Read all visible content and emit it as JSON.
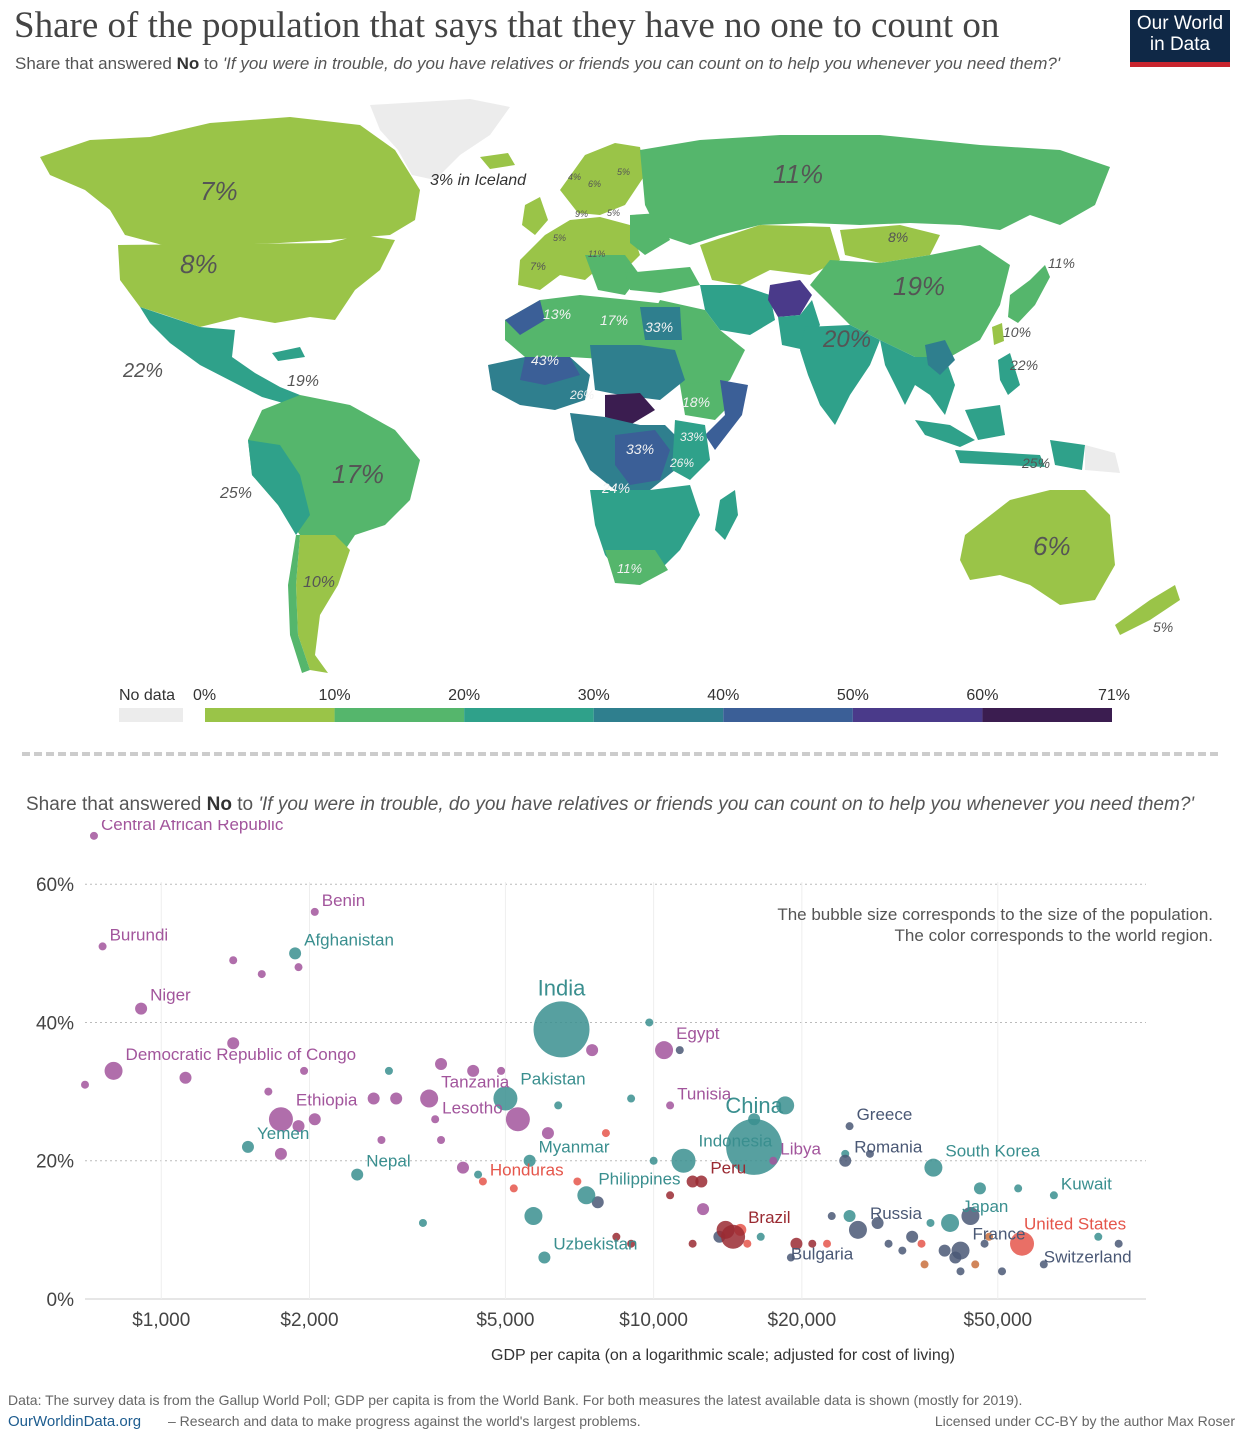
{
  "title": "Share of the population that says that they have no one to count on",
  "subtitle": {
    "prefix": "Share that answered ",
    "bold": "No",
    "middle": " to ",
    "question": "'If you were in trouble, do you have relatives or friends you can count on to help you whenever you need them?'"
  },
  "logo": {
    "line1": "Our World",
    "line2": "in Data"
  },
  "colors": {
    "bin_0_10": "#9ac448",
    "bin_10_20": "#55b66c",
    "bin_20_30": "#2fa18a",
    "bin_30_40": "#2f7f8e",
    "bin_40_50": "#3b5f97",
    "bin_50_60": "#4a3a8a",
    "bin_60_71": "#3b1d50",
    "no_data": "#ececec",
    "region_africa": "#a2559c",
    "region_asia": "#3a8f8f",
    "region_europe": "#4a5875",
    "region_north_america": "#e5564b",
    "region_south_america": "#9a2a32",
    "region_oceania": "#c9703d"
  },
  "map_labels": [
    {
      "text": "7%"
    },
    {
      "text": "8%"
    },
    {
      "text": "3% in Iceland"
    },
    {
      "text": "11%"
    },
    {
      "text": "8%"
    },
    {
      "text": "19%"
    },
    {
      "text": "11%"
    },
    {
      "text": "10%"
    },
    {
      "text": "20%"
    },
    {
      "text": "22%"
    },
    {
      "text": "22%"
    },
    {
      "text": "19%"
    },
    {
      "text": "17%"
    },
    {
      "text": "25%"
    },
    {
      "text": "10%"
    },
    {
      "text": "13%"
    },
    {
      "text": "17%"
    },
    {
      "text": "33%"
    },
    {
      "text": "43%"
    },
    {
      "text": "26%"
    },
    {
      "text": "18%"
    },
    {
      "text": "33%"
    },
    {
      "text": "33%"
    },
    {
      "text": "26%"
    },
    {
      "text": "24%"
    },
    {
      "text": "11%"
    },
    {
      "text": "25%"
    },
    {
      "text": "6%"
    },
    {
      "text": "5%"
    },
    {
      "text": "7%"
    },
    {
      "text": "5%"
    },
    {
      "text": "4%"
    },
    {
      "text": "6%"
    },
    {
      "text": "5%"
    },
    {
      "text": "9%"
    },
    {
      "text": "5%"
    },
    {
      "text": "11%"
    }
  ],
  "legend": {
    "no_data_label": "No data",
    "ticks": [
      "0%",
      "10%",
      "20%",
      "30%",
      "40%",
      "50%",
      "60%",
      "71%"
    ]
  },
  "scatter_subtitle": {
    "prefix": "Share that answered ",
    "bold": "No",
    "middle": " to ",
    "question": "'If you were in trouble, do you have relatives or friends you can count on to help you whenever you need them?'"
  },
  "bubble_note": {
    "line1": "The bubble size corresponds to the size of the population.",
    "line2": "The color corresponds to the world region."
  },
  "chart_data": {
    "type": "scatter",
    "title": "",
    "xlabel": "GDP per capita (on a logarithmic scale; adjusted for cost of living)",
    "ylabel": "",
    "x_scale": "log",
    "xlim": [
      700,
      100000
    ],
    "ylim": [
      0,
      69
    ],
    "x_ticks": [
      {
        "value": 1000,
        "label": "$1,000"
      },
      {
        "value": 2000,
        "label": "$2,000"
      },
      {
        "value": 5000,
        "label": "$5,000"
      },
      {
        "value": 10000,
        "label": "$10,000"
      },
      {
        "value": 20000,
        "label": "$20,000"
      },
      {
        "value": 50000,
        "label": "$50,000"
      }
    ],
    "y_ticks": [
      {
        "value": 0,
        "label": "0%"
      },
      {
        "value": 20,
        "label": "20%"
      },
      {
        "value": 40,
        "label": "40%"
      },
      {
        "value": 60,
        "label": "60%"
      }
    ],
    "grid": "horizontal dotted",
    "labeled_points": [
      {
        "name": "Central African Republic",
        "x": 730,
        "y": 67,
        "region": "africa",
        "pop": "s"
      },
      {
        "name": "Benin",
        "x": 2050,
        "y": 56,
        "region": "africa",
        "pop": "s"
      },
      {
        "name": "Burundi",
        "x": 760,
        "y": 51,
        "region": "africa",
        "pop": "s"
      },
      {
        "name": "Afghanistan",
        "x": 1870,
        "y": 50,
        "region": "asia",
        "pop": "m"
      },
      {
        "name": "Niger",
        "x": 910,
        "y": 42,
        "region": "africa",
        "pop": "m"
      },
      {
        "name": "India",
        "x": 6500,
        "y": 39,
        "region": "asia",
        "pop": "xxl"
      },
      {
        "name": "Egypt",
        "x": 10500,
        "y": 36,
        "region": "africa",
        "pop": "l"
      },
      {
        "name": "Democratic Republic of Congo",
        "x": 800,
        "y": 33,
        "region": "africa",
        "pop": "l"
      },
      {
        "name": "Pakistan",
        "x": 5000,
        "y": 29,
        "region": "asia",
        "pop": "xl"
      },
      {
        "name": "Tanzania",
        "x": 3500,
        "y": 29,
        "region": "africa",
        "pop": "l"
      },
      {
        "name": "Ethiopia",
        "x": 1750,
        "y": 26,
        "region": "africa",
        "pop": "xl"
      },
      {
        "name": "Tunisia",
        "x": 10800,
        "y": 28,
        "region": "africa",
        "pop": "s"
      },
      {
        "name": "China",
        "x": 16000,
        "y": 22,
        "region": "asia",
        "pop": "xxl"
      },
      {
        "name": "Greece",
        "x": 25000,
        "y": 25,
        "region": "europe",
        "pop": "s"
      },
      {
        "name": "Lesotho",
        "x": 3600,
        "y": 26,
        "region": "africa",
        "pop": "s"
      },
      {
        "name": "Yemen",
        "x": 1500,
        "y": 22,
        "region": "asia",
        "pop": "m"
      },
      {
        "name": "Myanmar",
        "x": 5600,
        "y": 20,
        "region": "asia",
        "pop": "m"
      },
      {
        "name": "Indonesia",
        "x": 11500,
        "y": 20,
        "region": "asia",
        "pop": "xl"
      },
      {
        "name": "Peru",
        "x": 12500,
        "y": 17,
        "region": "south_america",
        "pop": "m"
      },
      {
        "name": "Libya",
        "x": 17500,
        "y": 20,
        "region": "africa",
        "pop": "s"
      },
      {
        "name": "Romania",
        "x": 24500,
        "y": 20,
        "region": "europe",
        "pop": "m"
      },
      {
        "name": "South Korea",
        "x": 37000,
        "y": 19,
        "region": "asia",
        "pop": "l"
      },
      {
        "name": "Nepal",
        "x": 2500,
        "y": 18,
        "region": "asia",
        "pop": "m"
      },
      {
        "name": "Honduras",
        "x": 4500,
        "y": 17,
        "region": "north_america",
        "pop": "s"
      },
      {
        "name": "Philippines",
        "x": 7300,
        "y": 15,
        "region": "asia",
        "pop": "l"
      },
      {
        "name": "Kuwait",
        "x": 65000,
        "y": 15,
        "region": "asia",
        "pop": "s"
      },
      {
        "name": "Japan",
        "x": 40000,
        "y": 11,
        "region": "asia",
        "pop": "l"
      },
      {
        "name": "Brazil",
        "x": 14500,
        "y": 9,
        "region": "south_america",
        "pop": "xl"
      },
      {
        "name": "Russia",
        "x": 26000,
        "y": 10,
        "region": "europe",
        "pop": "l"
      },
      {
        "name": "United States",
        "x": 56000,
        "y": 8,
        "region": "north_america",
        "pop": "xl"
      },
      {
        "name": "France",
        "x": 42000,
        "y": 7,
        "region": "europe",
        "pop": "l"
      },
      {
        "name": "Uzbekistan",
        "x": 6000,
        "y": 6,
        "region": "asia",
        "pop": "m"
      },
      {
        "name": "Bulgaria",
        "x": 19000,
        "y": 6,
        "region": "europe",
        "pop": "s"
      },
      {
        "name": "Switzerland",
        "x": 62000,
        "y": 5,
        "region": "europe",
        "pop": "s"
      }
    ],
    "other_points": [
      {
        "x": 700,
        "y": 31,
        "region": "africa",
        "pop": "s"
      },
      {
        "x": 1120,
        "y": 32,
        "region": "africa",
        "pop": "m"
      },
      {
        "x": 1400,
        "y": 49,
        "region": "africa",
        "pop": "s"
      },
      {
        "x": 1600,
        "y": 47,
        "region": "africa",
        "pop": "s"
      },
      {
        "x": 1900,
        "y": 48,
        "region": "africa",
        "pop": "s"
      },
      {
        "x": 1400,
        "y": 37,
        "region": "africa",
        "pop": "m"
      },
      {
        "x": 1650,
        "y": 30,
        "region": "africa",
        "pop": "s"
      },
      {
        "x": 1950,
        "y": 33,
        "region": "africa",
        "pop": "s"
      },
      {
        "x": 2700,
        "y": 29,
        "region": "africa",
        "pop": "m"
      },
      {
        "x": 3000,
        "y": 29,
        "region": "africa",
        "pop": "m"
      },
      {
        "x": 2900,
        "y": 33,
        "region": "asia",
        "pop": "s"
      },
      {
        "x": 3700,
        "y": 34,
        "region": "africa",
        "pop": "m"
      },
      {
        "x": 4300,
        "y": 33,
        "region": "africa",
        "pop": "m"
      },
      {
        "x": 4900,
        "y": 33,
        "region": "africa",
        "pop": "s"
      },
      {
        "x": 1900,
        "y": 25,
        "region": "africa",
        "pop": "m"
      },
      {
        "x": 2050,
        "y": 26,
        "region": "africa",
        "pop": "m"
      },
      {
        "x": 1750,
        "y": 21,
        "region": "africa",
        "pop": "m"
      },
      {
        "x": 2800,
        "y": 23,
        "region": "africa",
        "pop": "s"
      },
      {
        "x": 3700,
        "y": 23,
        "region": "africa",
        "pop": "s"
      },
      {
        "x": 5300,
        "y": 26,
        "region": "africa",
        "pop": "xl"
      },
      {
        "x": 6100,
        "y": 24,
        "region": "africa",
        "pop": "m"
      },
      {
        "x": 6400,
        "y": 28,
        "region": "asia",
        "pop": "s"
      },
      {
        "x": 9000,
        "y": 29,
        "region": "asia",
        "pop": "s"
      },
      {
        "x": 7500,
        "y": 36,
        "region": "africa",
        "pop": "m"
      },
      {
        "x": 9800,
        "y": 40,
        "region": "asia",
        "pop": "s"
      },
      {
        "x": 11300,
        "y": 36,
        "region": "europe",
        "pop": "s"
      },
      {
        "x": 4100,
        "y": 19,
        "region": "africa",
        "pop": "m"
      },
      {
        "x": 4400,
        "y": 18,
        "region": "asia",
        "pop": "s"
      },
      {
        "x": 5200,
        "y": 16,
        "region": "north_america",
        "pop": "s"
      },
      {
        "x": 3400,
        "y": 11,
        "region": "asia",
        "pop": "s"
      },
      {
        "x": 5700,
        "y": 12,
        "region": "asia",
        "pop": "l"
      },
      {
        "x": 7700,
        "y": 14,
        "region": "europe",
        "pop": "m"
      },
      {
        "x": 7000,
        "y": 17,
        "region": "north_america",
        "pop": "s"
      },
      {
        "x": 8000,
        "y": 24,
        "region": "north_america",
        "pop": "s"
      },
      {
        "x": 10000,
        "y": 20,
        "region": "asia",
        "pop": "s"
      },
      {
        "x": 10800,
        "y": 15,
        "region": "south_america",
        "pop": "s"
      },
      {
        "x": 12000,
        "y": 17,
        "region": "south_america",
        "pop": "m"
      },
      {
        "x": 12600,
        "y": 13,
        "region": "africa",
        "pop": "m"
      },
      {
        "x": 8400,
        "y": 9,
        "region": "south_america",
        "pop": "s"
      },
      {
        "x": 9000,
        "y": 8,
        "region": "south_america",
        "pop": "s"
      },
      {
        "x": 12000,
        "y": 8,
        "region": "south_america",
        "pop": "s"
      },
      {
        "x": 13600,
        "y": 9,
        "region": "europe",
        "pop": "m"
      },
      {
        "x": 14000,
        "y": 10,
        "region": "south_america",
        "pop": "l"
      },
      {
        "x": 15000,
        "y": 10,
        "region": "north_america",
        "pop": "m"
      },
      {
        "x": 16500,
        "y": 9,
        "region": "asia",
        "pop": "s"
      },
      {
        "x": 15500,
        "y": 8,
        "region": "north_america",
        "pop": "s"
      },
      {
        "x": 16000,
        "y": 26,
        "region": "asia",
        "pop": "m"
      },
      {
        "x": 18500,
        "y": 28,
        "region": "asia",
        "pop": "l"
      },
      {
        "x": 19500,
        "y": 8,
        "region": "south_america",
        "pop": "m"
      },
      {
        "x": 21000,
        "y": 8,
        "region": "south_america",
        "pop": "s"
      },
      {
        "x": 22500,
        "y": 8,
        "region": "north_america",
        "pop": "s"
      },
      {
        "x": 23000,
        "y": 12,
        "region": "europe",
        "pop": "s"
      },
      {
        "x": 25000,
        "y": 12,
        "region": "asia",
        "pop": "m"
      },
      {
        "x": 24500,
        "y": 21,
        "region": "asia",
        "pop": "s"
      },
      {
        "x": 27500,
        "y": 21,
        "region": "europe",
        "pop": "s"
      },
      {
        "x": 28500,
        "y": 11,
        "region": "europe",
        "pop": "m"
      },
      {
        "x": 30000,
        "y": 8,
        "region": "europe",
        "pop": "s"
      },
      {
        "x": 32000,
        "y": 7,
        "region": "europe",
        "pop": "s"
      },
      {
        "x": 33500,
        "y": 9,
        "region": "europe",
        "pop": "m"
      },
      {
        "x": 35000,
        "y": 8,
        "region": "north_america",
        "pop": "s"
      },
      {
        "x": 35500,
        "y": 5,
        "region": "oceania",
        "pop": "s"
      },
      {
        "x": 36500,
        "y": 11,
        "region": "asia",
        "pop": "s"
      },
      {
        "x": 39000,
        "y": 7,
        "region": "europe",
        "pop": "m"
      },
      {
        "x": 41000,
        "y": 6,
        "region": "europe",
        "pop": "m"
      },
      {
        "x": 44000,
        "y": 12,
        "region": "europe",
        "pop": "l"
      },
      {
        "x": 45000,
        "y": 5,
        "region": "oceania",
        "pop": "s"
      },
      {
        "x": 47000,
        "y": 8,
        "region": "europe",
        "pop": "s"
      },
      {
        "x": 48000,
        "y": 9,
        "region": "oceania",
        "pop": "s"
      },
      {
        "x": 51000,
        "y": 4,
        "region": "europe",
        "pop": "s"
      },
      {
        "x": 46000,
        "y": 16,
        "region": "asia",
        "pop": "m"
      },
      {
        "x": 55000,
        "y": 16,
        "region": "asia",
        "pop": "s"
      },
      {
        "x": 80000,
        "y": 9,
        "region": "asia",
        "pop": "s"
      },
      {
        "x": 88000,
        "y": 8,
        "region": "europe",
        "pop": "s"
      },
      {
        "x": 42000,
        "y": 4,
        "region": "europe",
        "pop": "s"
      }
    ]
  },
  "footer": {
    "data_note": "Data: The survey data is from the Gallup World Poll; GDP per capita is from the World Bank. For both measures the latest available data is shown (mostly for 2019).",
    "site": "OurWorldinData.org",
    "tagline": "– Research and data to make progress against the world's largest problems.",
    "license": "Licensed under CC-BY by the author Max Roser"
  }
}
